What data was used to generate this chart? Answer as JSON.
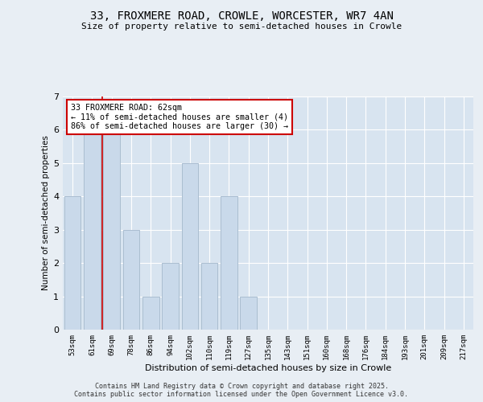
{
  "title_line1": "33, FROXMERE ROAD, CROWLE, WORCESTER, WR7 4AN",
  "title_line2": "Size of property relative to semi-detached houses in Crowle",
  "xlabel": "Distribution of semi-detached houses by size in Crowle",
  "ylabel": "Number of semi-detached properties",
  "categories": [
    "53sqm",
    "61sqm",
    "69sqm",
    "78sqm",
    "86sqm",
    "94sqm",
    "102sqm",
    "110sqm",
    "119sqm",
    "127sqm",
    "135sqm",
    "143sqm",
    "151sqm",
    "160sqm",
    "168sqm",
    "176sqm",
    "184sqm",
    "193sqm",
    "201sqm",
    "209sqm",
    "217sqm"
  ],
  "values": [
    4,
    6,
    6,
    3,
    1,
    2,
    5,
    2,
    4,
    1,
    0,
    0,
    0,
    0,
    0,
    0,
    0,
    0,
    0,
    0,
    0
  ],
  "bar_color": "#c9d9ea",
  "bar_edge_color": "#aabdd0",
  "red_line_color": "#cc0000",
  "red_line_x": 1.5,
  "annotation_title": "33 FROXMERE ROAD: 62sqm",
  "annotation_line2": "← 11% of semi-detached houses are smaller (4)",
  "annotation_line3": "86% of semi-detached houses are larger (30) →",
  "annotation_box_color": "#ffffff",
  "annotation_box_edge": "#cc0000",
  "background_color": "#e8eef4",
  "plot_bg_color": "#d8e4f0",
  "yticks": [
    0,
    1,
    2,
    3,
    4,
    5,
    6,
    7
  ],
  "ylim": [
    0,
    7
  ],
  "footer_line1": "Contains HM Land Registry data © Crown copyright and database right 2025.",
  "footer_line2": "Contains public sector information licensed under the Open Government Licence v3.0."
}
